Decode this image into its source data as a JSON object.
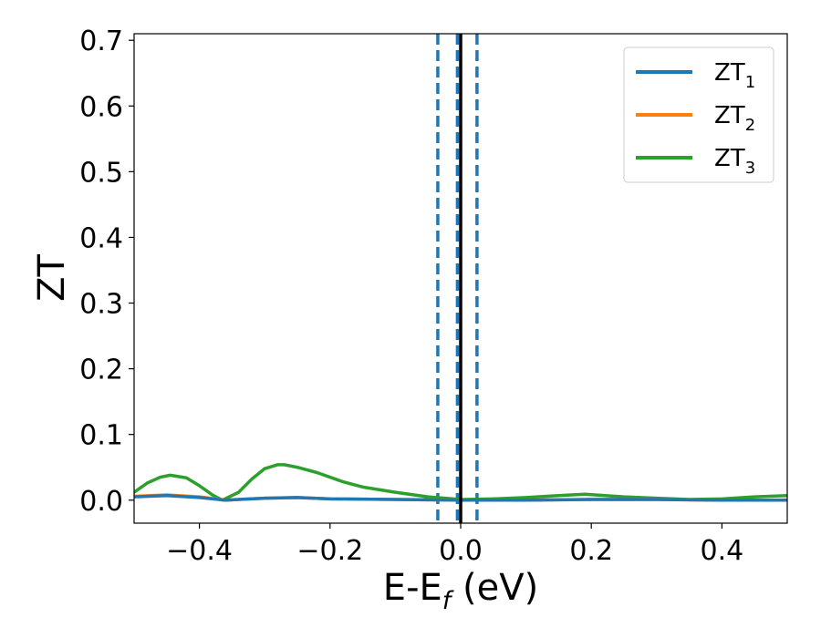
{
  "chart_data": {
    "type": "line",
    "xlabel": {
      "main": "E-E",
      "sub": "f",
      "tail": " (eV)"
    },
    "ylabel": "ZT",
    "xlim": [
      -0.5,
      0.5
    ],
    "ylim": [
      -0.035,
      0.71
    ],
    "grid": false,
    "legend_placement": "top-right",
    "x_ticks": [
      -0.4,
      -0.2,
      0.0,
      0.2,
      0.4
    ],
    "x_tick_labels": [
      "−0.4",
      "−0.2",
      "0.0",
      "0.2",
      "0.4"
    ],
    "y_ticks": [
      0.0,
      0.1,
      0.2,
      0.3,
      0.4,
      0.5,
      0.6,
      0.7
    ],
    "y_tick_labels": [
      "0.0",
      "0.1",
      "0.2",
      "0.3",
      "0.4",
      "0.5",
      "0.6",
      "0.7"
    ],
    "vertical_lines": [
      {
        "x": 0.0,
        "style": "solid",
        "color": "#000000"
      },
      {
        "x": -0.035,
        "style": "dashed",
        "color": "#1f77b4"
      },
      {
        "x": -0.005,
        "style": "dashed",
        "color": "#1f77b4"
      },
      {
        "x": 0.025,
        "style": "dashed",
        "color": "#1f77b4"
      }
    ],
    "series": [
      {
        "name": "ZT",
        "name_sub": "1",
        "color": "#1f77b4",
        "x": [
          -0.5,
          -0.45,
          -0.4,
          -0.36,
          -0.3,
          -0.25,
          -0.2,
          -0.1,
          0.0,
          0.1,
          0.2,
          0.3,
          0.4,
          0.5
        ],
        "y": [
          0.005,
          0.007,
          0.004,
          0.0,
          0.003,
          0.004,
          0.002,
          0.001,
          0.0,
          0.0,
          0.001,
          0.001,
          0.0,
          0.0
        ]
      },
      {
        "name": "ZT",
        "name_sub": "2",
        "color": "#ff7f0e",
        "x": [
          -0.5,
          -0.45,
          -0.4,
          -0.36,
          -0.3,
          -0.25,
          -0.2,
          -0.1,
          0.0,
          0.1,
          0.2,
          0.3,
          0.4,
          0.5
        ],
        "y": [
          0.006,
          0.008,
          0.005,
          0.0,
          0.003,
          0.004,
          0.002,
          0.001,
          0.0,
          0.0,
          0.001,
          0.001,
          0.0,
          0.0
        ]
      },
      {
        "name": "ZT",
        "name_sub": "3",
        "color": "#2ca02c",
        "x": [
          -0.5,
          -0.48,
          -0.46,
          -0.445,
          -0.42,
          -0.4,
          -0.38,
          -0.365,
          -0.34,
          -0.32,
          -0.3,
          -0.28,
          -0.27,
          -0.25,
          -0.22,
          -0.2,
          -0.18,
          -0.15,
          -0.1,
          -0.05,
          0.0,
          0.05,
          0.1,
          0.15,
          0.19,
          0.25,
          0.3,
          0.35,
          0.4,
          0.45,
          0.5
        ],
        "y": [
          0.012,
          0.026,
          0.035,
          0.038,
          0.034,
          0.022,
          0.008,
          0.0,
          0.012,
          0.032,
          0.048,
          0.054,
          0.054,
          0.05,
          0.042,
          0.035,
          0.028,
          0.02,
          0.012,
          0.005,
          0.001,
          0.002,
          0.004,
          0.007,
          0.009,
          0.005,
          0.003,
          0.001,
          0.002,
          0.005,
          0.007
        ]
      }
    ]
  }
}
